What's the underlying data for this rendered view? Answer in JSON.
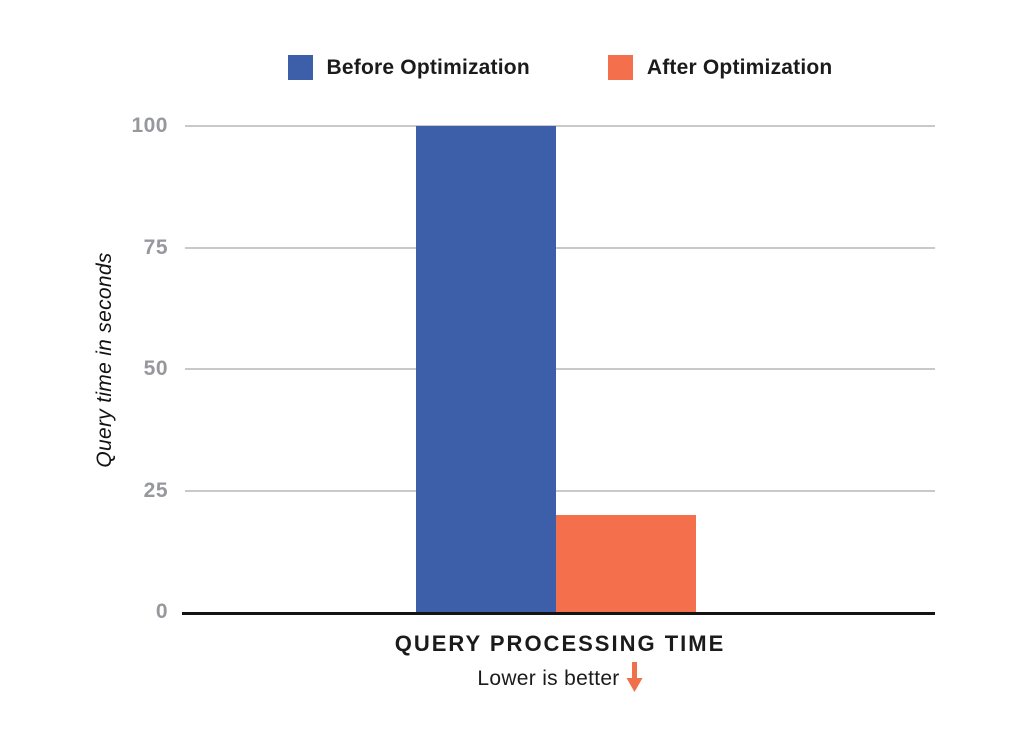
{
  "chart_data": {
    "type": "bar",
    "title": "QUERY PROCESSING TIME",
    "subtitle": "Lower is better",
    "subtitle_arrow": "down-arrow",
    "ylabel": "Query time in seconds",
    "xlabel": "",
    "categories": [
      "Query Processing Time"
    ],
    "series": [
      {
        "name": "Before Optimization",
        "values": [
          100
        ],
        "color": "#3d5faa"
      },
      {
        "name": "After Optimization",
        "values": [
          20
        ],
        "color": "#f4704c"
      }
    ],
    "ylim": [
      0,
      100
    ],
    "yticks": [
      0,
      25,
      50,
      75,
      100
    ],
    "grid": true,
    "legend_position": "top",
    "gridline_color": "#c9c9cc",
    "axis_line_color": "#141414",
    "tick_label_color": "#97989d",
    "arrow_color": "#f0704c"
  }
}
